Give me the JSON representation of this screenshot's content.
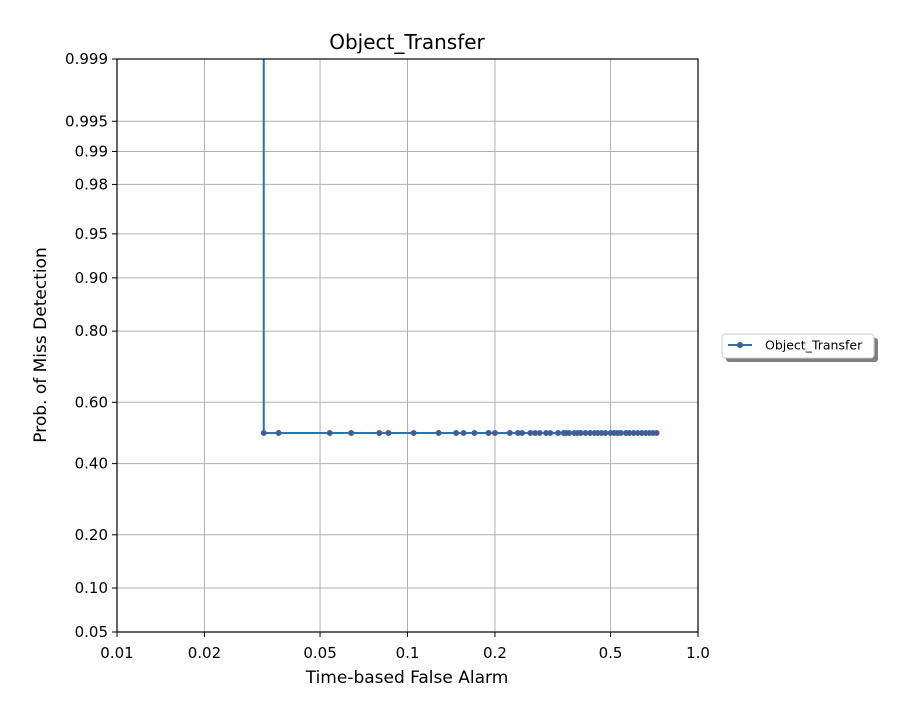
{
  "chart_data": {
    "type": "line",
    "title": "Object_Transfer",
    "xlabel": "Time-based False Alarm",
    "ylabel": "Prob. of Miss Detection",
    "x_scale": "log",
    "y_scale": "normal-deviate",
    "xlim": [
      0.01,
      1.0
    ],
    "ylim": [
      0.05,
      0.999
    ],
    "x_ticks": [
      {
        "value": 0.01,
        "label": "0.01"
      },
      {
        "value": 0.02,
        "label": "0.02"
      },
      {
        "value": 0.05,
        "label": "0.05"
      },
      {
        "value": 0.1,
        "label": "0.1"
      },
      {
        "value": 0.2,
        "label": "0.2"
      },
      {
        "value": 0.5,
        "label": "0.5"
      },
      {
        "value": 1.0,
        "label": "1.0"
      }
    ],
    "y_ticks": [
      {
        "value": 0.05,
        "label": "0.05"
      },
      {
        "value": 0.1,
        "label": "0.10"
      },
      {
        "value": 0.2,
        "label": "0.20"
      },
      {
        "value": 0.4,
        "label": "0.40"
      },
      {
        "value": 0.6,
        "label": "0.60"
      },
      {
        "value": 0.8,
        "label": "0.80"
      },
      {
        "value": 0.9,
        "label": "0.90"
      },
      {
        "value": 0.95,
        "label": "0.95"
      },
      {
        "value": 0.98,
        "label": "0.98"
      },
      {
        "value": 0.99,
        "label": "0.99"
      },
      {
        "value": 0.995,
        "label": "0.995"
      },
      {
        "value": 0.999,
        "label": "0.999"
      }
    ],
    "grid": true,
    "legend_position": "outside-right",
    "series": [
      {
        "name": "Object_Transfer",
        "color": "#1f77b4",
        "marker_color": "#5a4f8a",
        "line_path": [
          {
            "x": 0.032,
            "y": 0.999
          },
          {
            "x": 0.032,
            "y": 0.5
          },
          {
            "x": 0.72,
            "y": 0.5
          }
        ],
        "x": [
          0.032,
          0.036,
          0.054,
          0.064,
          0.08,
          0.086,
          0.105,
          0.128,
          0.147,
          0.156,
          0.17,
          0.19,
          0.2,
          0.225,
          0.24,
          0.248,
          0.265,
          0.275,
          0.285,
          0.3,
          0.31,
          0.33,
          0.345,
          0.352,
          0.36,
          0.375,
          0.385,
          0.395,
          0.41,
          0.425,
          0.44,
          0.452,
          0.465,
          0.48,
          0.5,
          0.515,
          0.528,
          0.542,
          0.565,
          0.58,
          0.6,
          0.62,
          0.64,
          0.66,
          0.68,
          0.7,
          0.72
        ],
        "y": [
          0.5,
          0.5,
          0.5,
          0.5,
          0.5,
          0.5,
          0.5,
          0.5,
          0.5,
          0.5,
          0.5,
          0.5,
          0.5,
          0.5,
          0.5,
          0.5,
          0.5,
          0.5,
          0.5,
          0.5,
          0.5,
          0.5,
          0.5,
          0.5,
          0.5,
          0.5,
          0.5,
          0.5,
          0.5,
          0.5,
          0.5,
          0.5,
          0.5,
          0.5,
          0.5,
          0.5,
          0.5,
          0.5,
          0.5,
          0.5,
          0.5,
          0.5,
          0.5,
          0.5,
          0.5,
          0.5,
          0.5
        ]
      }
    ],
    "colors": {
      "axes_edge": "#000000",
      "grid": "#b0b0b0",
      "legend_shadow": "#7f7f7f",
      "legend_border": "#cccccc"
    }
  }
}
